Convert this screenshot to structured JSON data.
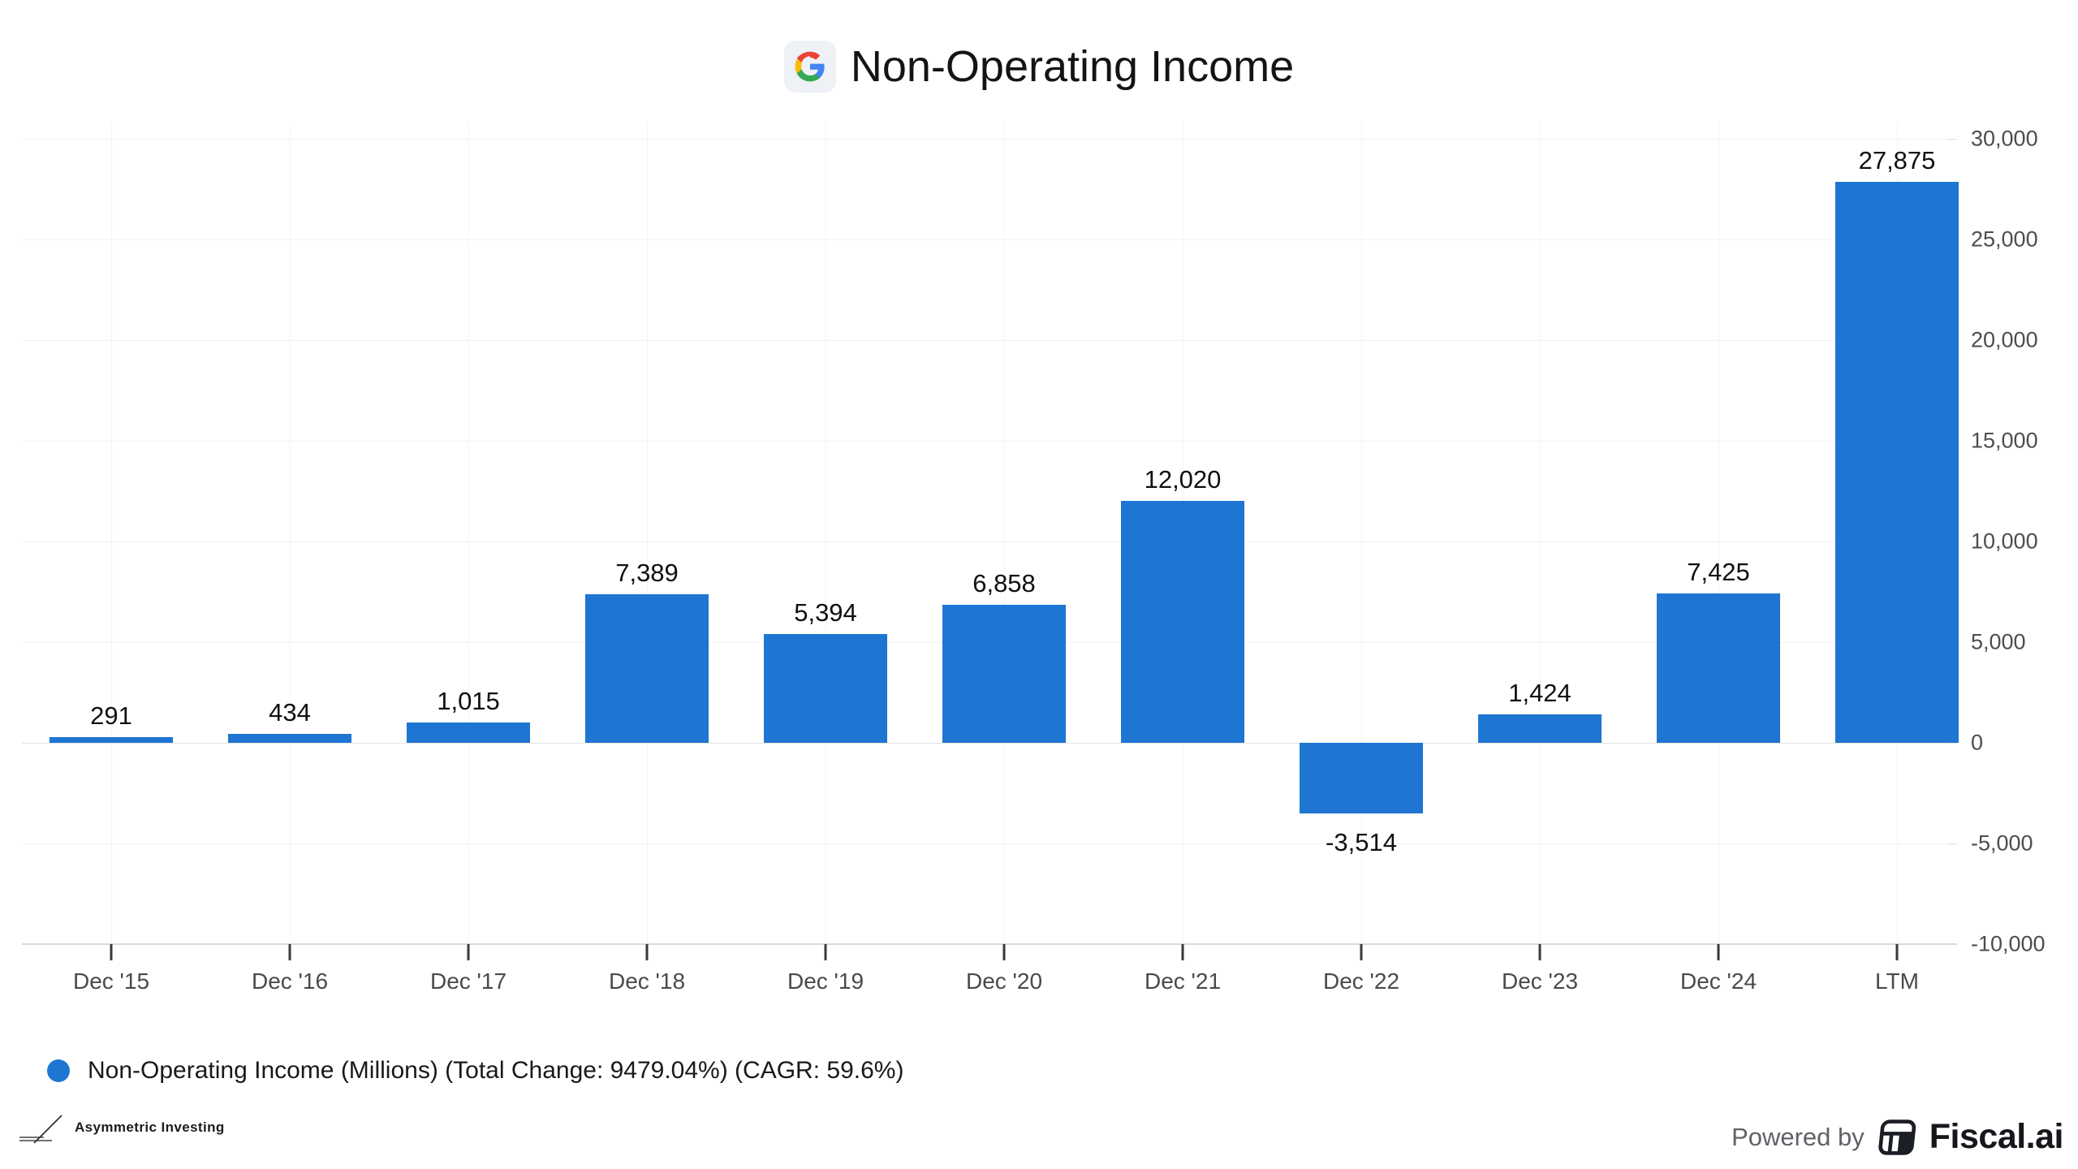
{
  "header": {
    "title": "Non-Operating Income",
    "icon": "google-logo"
  },
  "chart_data": {
    "type": "bar",
    "title": "Non-Operating Income",
    "categories": [
      "Dec '15",
      "Dec '16",
      "Dec '17",
      "Dec '18",
      "Dec '19",
      "Dec '20",
      "Dec '21",
      "Dec '22",
      "Dec '23",
      "Dec '24",
      "LTM"
    ],
    "values": [
      291,
      434,
      1015,
      7389,
      5394,
      6858,
      12020,
      -3514,
      1424,
      7425,
      27875
    ],
    "value_labels": [
      "291",
      "434",
      "1,015",
      "7,389",
      "5,394",
      "6,858",
      "12,020",
      "-3,514",
      "1,424",
      "7,425",
      "27,875"
    ],
    "ylim": [
      -10000,
      30000
    ],
    "ytick_step": 5000,
    "ytick_labels": [
      "30,000",
      "25,000",
      "20,000",
      "15,000",
      "10,000",
      "5,000",
      "0",
      "-5,000",
      "-10,000"
    ],
    "xlabel": "",
    "ylabel": "",
    "grid": true,
    "axis_side": "right",
    "legend_position": "bottom-left",
    "legend": "Non-Operating Income (Millions) (Total Change: 9479.04%) (CAGR: 59.6%)",
    "bar_color": "#1e76d2"
  },
  "footer": {
    "brand_left": "Asymmetric Investing",
    "powered_by": "Powered by",
    "brand_right": "Fiscal.ai"
  }
}
